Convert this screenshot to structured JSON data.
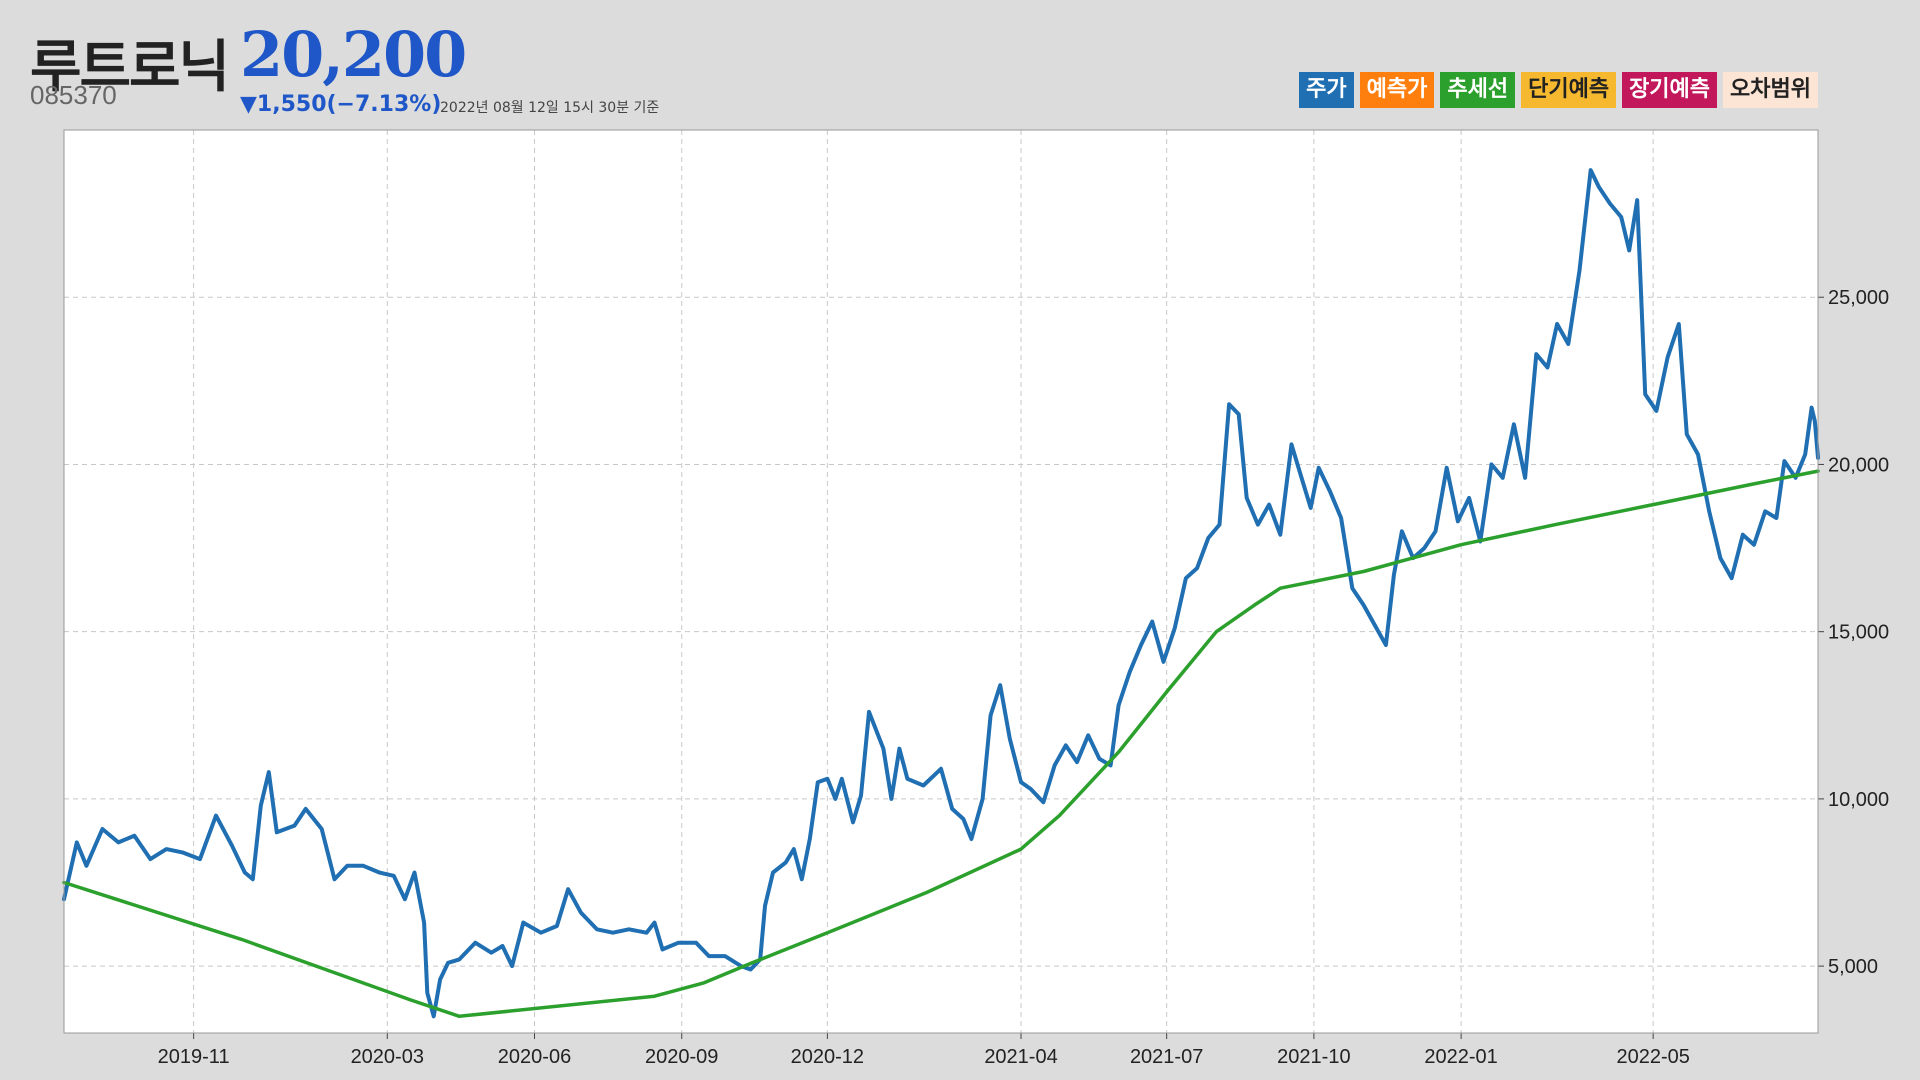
{
  "header": {
    "name": "루트로닉",
    "price": "20,200",
    "code": "085370",
    "change": "▼1,550(−7.13%)",
    "timestamp": "2022년 08월 12일 15시 30분 기준"
  },
  "legend": [
    {
      "label": "주가",
      "bg": "#1f6fb2",
      "fg": "#ffffff"
    },
    {
      "label": "예측가",
      "bg": "#ff7f0e",
      "fg": "#ffffff"
    },
    {
      "label": "추세선",
      "bg": "#2ca02c",
      "fg": "#ffffff"
    },
    {
      "label": "단기예측",
      "bg": "#f5b82e",
      "fg": "#222222"
    },
    {
      "label": "장기예측",
      "bg": "#c2185b",
      "fg": "#ffffff"
    },
    {
      "label": "오차범위",
      "bg": "#fde5d6",
      "fg": "#222222"
    }
  ],
  "chart_data": {
    "type": "line",
    "x_start": "2019-08-12",
    "x_end": "2022-08-12",
    "xticks": [
      "2019-11",
      "2020-03",
      "2020-06",
      "2020-09",
      "2020-12",
      "2021-04",
      "2021-07",
      "2021-10",
      "2022-01",
      "2022-05"
    ],
    "ylim": [
      3000,
      30000
    ],
    "yticks": [
      5000,
      10000,
      15000,
      20000,
      25000
    ],
    "ytick_labels": [
      "5,000",
      "10,000",
      "15,000",
      "20,000",
      "25,000"
    ],
    "grid": true,
    "series": [
      {
        "name": "주가",
        "color": "#1f6fb2",
        "points": [
          [
            "2019-08-12",
            7000
          ],
          [
            "2019-08-20",
            8700
          ],
          [
            "2019-08-26",
            8000
          ],
          [
            "2019-09-05",
            9100
          ],
          [
            "2019-09-15",
            8700
          ],
          [
            "2019-09-25",
            8900
          ],
          [
            "2019-10-05",
            8200
          ],
          [
            "2019-10-15",
            8500
          ],
          [
            "2019-10-25",
            8400
          ],
          [
            "2019-11-05",
            8200
          ],
          [
            "2019-11-15",
            9500
          ],
          [
            "2019-11-25",
            8600
          ],
          [
            "2019-12-03",
            7800
          ],
          [
            "2019-12-08",
            7600
          ],
          [
            "2019-12-13",
            9800
          ],
          [
            "2019-12-18",
            10800
          ],
          [
            "2019-12-23",
            9000
          ],
          [
            "2020-01-03",
            9200
          ],
          [
            "2020-01-10",
            9700
          ],
          [
            "2020-01-20",
            9100
          ],
          [
            "2020-01-28",
            7600
          ],
          [
            "2020-02-05",
            8000
          ],
          [
            "2020-02-15",
            8000
          ],
          [
            "2020-02-25",
            7800
          ],
          [
            "2020-03-05",
            7700
          ],
          [
            "2020-03-12",
            7000
          ],
          [
            "2020-03-18",
            7800
          ],
          [
            "2020-03-24",
            6300
          ],
          [
            "2020-03-26",
            4200
          ],
          [
            "2020-03-30",
            3500
          ],
          [
            "2020-04-03",
            4600
          ],
          [
            "2020-04-08",
            5100
          ],
          [
            "2020-04-15",
            5200
          ],
          [
            "2020-04-25",
            5700
          ],
          [
            "2020-05-05",
            5400
          ],
          [
            "2020-05-12",
            5600
          ],
          [
            "2020-05-18",
            5000
          ],
          [
            "2020-05-25",
            6300
          ],
          [
            "2020-06-05",
            6000
          ],
          [
            "2020-06-15",
            6200
          ],
          [
            "2020-06-22",
            7300
          ],
          [
            "2020-06-30",
            6600
          ],
          [
            "2020-07-10",
            6100
          ],
          [
            "2020-07-20",
            6000
          ],
          [
            "2020-07-30",
            6100
          ],
          [
            "2020-08-10",
            6000
          ],
          [
            "2020-08-15",
            6300
          ],
          [
            "2020-08-20",
            5500
          ],
          [
            "2020-08-30",
            5700
          ],
          [
            "2020-09-10",
            5700
          ],
          [
            "2020-09-18",
            5300
          ],
          [
            "2020-09-28",
            5300
          ],
          [
            "2020-10-08",
            5000
          ],
          [
            "2020-10-14",
            4900
          ],
          [
            "2020-10-20",
            5200
          ],
          [
            "2020-10-23",
            6800
          ],
          [
            "2020-10-28",
            7800
          ],
          [
            "2020-11-05",
            8100
          ],
          [
            "2020-11-10",
            8500
          ],
          [
            "2020-11-15",
            7600
          ],
          [
            "2020-11-20",
            8800
          ],
          [
            "2020-11-25",
            10500
          ],
          [
            "2020-12-01",
            10600
          ],
          [
            "2020-12-06",
            10000
          ],
          [
            "2020-12-10",
            10600
          ],
          [
            "2020-12-17",
            9300
          ],
          [
            "2020-12-22",
            10100
          ],
          [
            "2020-12-27",
            12600
          ],
          [
            "2021-01-05",
            11500
          ],
          [
            "2021-01-10",
            10000
          ],
          [
            "2021-01-15",
            11500
          ],
          [
            "2021-01-20",
            10600
          ],
          [
            "2021-01-30",
            10400
          ],
          [
            "2021-02-10",
            10900
          ],
          [
            "2021-02-17",
            9700
          ],
          [
            "2021-02-24",
            9400
          ],
          [
            "2021-03-01",
            8800
          ],
          [
            "2021-03-08",
            10000
          ],
          [
            "2021-03-13",
            12500
          ],
          [
            "2021-03-19",
            13400
          ],
          [
            "2021-03-25",
            11800
          ],
          [
            "2021-04-01",
            10500
          ],
          [
            "2021-04-07",
            10300
          ],
          [
            "2021-04-15",
            9900
          ],
          [
            "2021-04-22",
            11000
          ],
          [
            "2021-04-29",
            11600
          ],
          [
            "2021-05-06",
            11100
          ],
          [
            "2021-05-13",
            11900
          ],
          [
            "2021-05-20",
            11200
          ],
          [
            "2021-05-27",
            11000
          ],
          [
            "2021-06-01",
            12800
          ],
          [
            "2021-06-08",
            13800
          ],
          [
            "2021-06-15",
            14600
          ],
          [
            "2021-06-22",
            15300
          ],
          [
            "2021-06-29",
            14100
          ],
          [
            "2021-07-06",
            15100
          ],
          [
            "2021-07-13",
            16600
          ],
          [
            "2021-07-20",
            16900
          ],
          [
            "2021-07-27",
            17800
          ],
          [
            "2021-08-03",
            18200
          ],
          [
            "2021-08-09",
            21800
          ],
          [
            "2021-08-15",
            21500
          ],
          [
            "2021-08-20",
            19000
          ],
          [
            "2021-08-27",
            18200
          ],
          [
            "2021-09-03",
            18800
          ],
          [
            "2021-09-10",
            17900
          ],
          [
            "2021-09-17",
            20600
          ],
          [
            "2021-09-22",
            19800
          ],
          [
            "2021-09-29",
            18700
          ],
          [
            "2021-10-04",
            19900
          ],
          [
            "2021-10-11",
            19200
          ],
          [
            "2021-10-18",
            18400
          ],
          [
            "2021-10-25",
            16300
          ],
          [
            "2021-11-01",
            15800
          ],
          [
            "2021-11-08",
            15200
          ],
          [
            "2021-11-15",
            14600
          ],
          [
            "2021-11-20",
            16700
          ],
          [
            "2021-11-25",
            18000
          ],
          [
            "2021-12-02",
            17200
          ],
          [
            "2021-12-09",
            17500
          ],
          [
            "2021-12-16",
            18000
          ],
          [
            "2021-12-23",
            19900
          ],
          [
            "2021-12-30",
            18300
          ],
          [
            "2022-01-06",
            19000
          ],
          [
            "2022-01-13",
            17700
          ],
          [
            "2022-01-20",
            20000
          ],
          [
            "2022-01-27",
            19600
          ],
          [
            "2022-02-03",
            21200
          ],
          [
            "2022-02-10",
            19600
          ],
          [
            "2022-02-17",
            23300
          ],
          [
            "2022-02-24",
            22900
          ],
          [
            "2022-03-02",
            24200
          ],
          [
            "2022-03-09",
            23600
          ],
          [
            "2022-03-16",
            25800
          ],
          [
            "2022-03-23",
            28800
          ],
          [
            "2022-03-28",
            28300
          ],
          [
            "2022-04-04",
            27800
          ],
          [
            "2022-04-11",
            27400
          ],
          [
            "2022-04-16",
            26400
          ],
          [
            "2022-04-21",
            27900
          ],
          [
            "2022-04-26",
            22100
          ],
          [
            "2022-05-03",
            21600
          ],
          [
            "2022-05-10",
            23200
          ],
          [
            "2022-05-17",
            24200
          ],
          [
            "2022-05-22",
            20900
          ],
          [
            "2022-05-29",
            20300
          ],
          [
            "2022-06-05",
            18600
          ],
          [
            "2022-06-12",
            17200
          ],
          [
            "2022-06-19",
            16600
          ],
          [
            "2022-06-26",
            17900
          ],
          [
            "2022-07-03",
            17600
          ],
          [
            "2022-07-10",
            18600
          ],
          [
            "2022-07-17",
            18400
          ],
          [
            "2022-07-22",
            20100
          ],
          [
            "2022-07-29",
            19600
          ],
          [
            "2022-08-04",
            20300
          ],
          [
            "2022-08-08",
            21700
          ],
          [
            "2022-08-10",
            21300
          ],
          [
            "2022-08-12",
            20200
          ]
        ]
      },
      {
        "name": "추세선",
        "color": "#2ca02c",
        "points": [
          [
            "2019-08-12",
            7500
          ],
          [
            "2019-12-01",
            5800
          ],
          [
            "2020-03-15",
            4000
          ],
          [
            "2020-04-15",
            3500
          ],
          [
            "2020-08-15",
            4100
          ],
          [
            "2020-09-15",
            4500
          ],
          [
            "2020-10-15",
            5100
          ],
          [
            "2020-12-01",
            6000
          ],
          [
            "2021-02-01",
            7200
          ],
          [
            "2021-04-01",
            8500
          ],
          [
            "2021-04-25",
            9500
          ],
          [
            "2021-06-01",
            11400
          ],
          [
            "2021-07-01",
            13200
          ],
          [
            "2021-08-01",
            15000
          ],
          [
            "2021-08-25",
            15800
          ],
          [
            "2021-09-10",
            16300
          ],
          [
            "2021-11-01",
            16800
          ],
          [
            "2022-01-01",
            17600
          ],
          [
            "2022-03-01",
            18200
          ],
          [
            "2022-05-01",
            18800
          ],
          [
            "2022-07-01",
            19400
          ],
          [
            "2022-08-12",
            19800
          ]
        ]
      }
    ]
  }
}
